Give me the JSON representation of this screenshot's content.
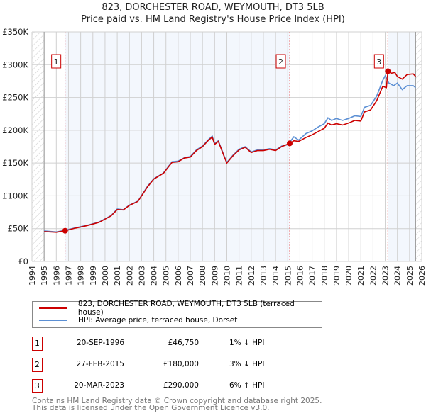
{
  "chart_data": {
    "type": "line",
    "title": "823, DORCHESTER ROAD, WEYMOUTH, DT3 5LB",
    "subtitle": "Price paid vs. HM Land Registry's House Price Index (HPI)",
    "ylim": [
      0,
      350000
    ],
    "xlim": [
      1994,
      2026
    ],
    "yticks": [
      {
        "v": 0,
        "l": "£0"
      },
      {
        "v": 50000,
        "l": "£50K"
      },
      {
        "v": 100000,
        "l": "£100K"
      },
      {
        "v": 150000,
        "l": "£150K"
      },
      {
        "v": 200000,
        "l": "£200K"
      },
      {
        "v": 250000,
        "l": "£250K"
      },
      {
        "v": 300000,
        "l": "£300K"
      },
      {
        "v": 350000,
        "l": "£350K"
      }
    ],
    "xticks": [
      "1994",
      "1995",
      "1996",
      "1997",
      "1998",
      "1999",
      "2000",
      "2001",
      "2002",
      "2003",
      "2004",
      "2005",
      "2006",
      "2007",
      "2008",
      "2009",
      "2010",
      "2011",
      "2012",
      "2013",
      "2014",
      "2015",
      "2016",
      "2017",
      "2018",
      "2019",
      "2020",
      "2021",
      "2022",
      "2023",
      "2024",
      "2025",
      "2026"
    ],
    "grid": true,
    "series": [
      {
        "name": "823, DORCHESTER ROAD, WEYMOUTH, DT3 5LB (terraced house)",
        "color": "#cc0000",
        "x": [
          1995,
          1996,
          1996.72,
          1997.5,
          1998.5,
          1999.5,
          2000.5,
          2001,
          2001.5,
          2002,
          2002.7,
          2003.5,
          2004,
          2004.8,
          2005.5,
          2006,
          2006.5,
          2007,
          2007.5,
          2008,
          2008.5,
          2008.8,
          2009,
          2009.3,
          2009.8,
          2010,
          2010.5,
          2011,
          2011.5,
          2012,
          2012.5,
          2013,
          2013.5,
          2014,
          2014.5,
          2015.16,
          2015.5,
          2015.9,
          2016.5,
          2017,
          2017.5,
          2018,
          2018.3,
          2018.6,
          2019,
          2019.5,
          2020,
          2020.5,
          2021,
          2021.3,
          2021.8,
          2022.3,
          2022.8,
          2023.1,
          2023.22,
          2023.5,
          2023.8,
          2024,
          2024.4,
          2024.8,
          2025.3,
          2025.5
        ],
        "y": [
          45500,
          44500,
          46750,
          50500,
          54500,
          59500,
          69500,
          79000,
          78500,
          85500,
          91500,
          114000,
          125500,
          134500,
          151000,
          152000,
          157500,
          159000,
          169000,
          175000,
          185000,
          189500,
          178500,
          183000,
          159000,
          150000,
          161000,
          170000,
          174000,
          166000,
          169000,
          169000,
          171000,
          169000,
          175000,
          180000,
          184000,
          183000,
          189000,
          193000,
          198000,
          203000,
          211000,
          208000,
          210000,
          208000,
          211000,
          215000,
          214000,
          228000,
          231000,
          245000,
          267000,
          265000,
          290000,
          287000,
          288000,
          282000,
          278000,
          285000,
          286000,
          282000
        ]
      },
      {
        "name": "HPI: Average price, terraced house, Dorset",
        "color": "#5b8fd4",
        "x": [
          1995,
          1996,
          1996.72,
          1997.5,
          1998.5,
          1999.5,
          2000.5,
          2001,
          2001.5,
          2002,
          2002.7,
          2003.5,
          2004,
          2004.8,
          2005.5,
          2006,
          2006.5,
          2007,
          2007.5,
          2008,
          2008.5,
          2008.8,
          2009,
          2009.3,
          2009.8,
          2010,
          2010.5,
          2011,
          2011.5,
          2012,
          2012.5,
          2013,
          2013.5,
          2014,
          2014.5,
          2015,
          2015.5,
          2015.9,
          2016.5,
          2017,
          2017.5,
          2018,
          2018.3,
          2018.6,
          2019,
          2019.5,
          2020,
          2020.5,
          2021,
          2021.3,
          2021.8,
          2022.3,
          2022.8,
          2023,
          2023.3,
          2023.7,
          2024,
          2024.4,
          2024.8,
          2025.3,
          2025.5
        ],
        "y": [
          46500,
          45000,
          47500,
          51000,
          55000,
          60000,
          70000,
          80000,
          79000,
          86000,
          92000,
          115000,
          126000,
          135000,
          152000,
          153000,
          158000,
          160000,
          170000,
          176000,
          186000,
          191000,
          180000,
          184000,
          160000,
          151000,
          162000,
          171000,
          175000,
          167000,
          170000,
          170000,
          172000,
          170000,
          176000,
          178000,
          190000,
          185000,
          195000,
          199000,
          205000,
          210000,
          219000,
          215000,
          218000,
          215000,
          218000,
          222000,
          221000,
          235000,
          238000,
          252000,
          276000,
          283000,
          272000,
          268000,
          272000,
          262000,
          268000,
          268000,
          265000
        ]
      }
    ],
    "sales": [
      {
        "label": "1",
        "x": 1996.72,
        "y": 46750
      },
      {
        "label": "2",
        "x": 2015.16,
        "y": 180000
      },
      {
        "label": "3",
        "x": 2023.22,
        "y": 290000
      }
    ],
    "legend_position": "bottom"
  },
  "legend": {
    "property": "823, DORCHESTER ROAD, WEYMOUTH, DT3 5LB (terraced house)",
    "hpi": "HPI: Average price, terraced house, Dorset"
  },
  "table": [
    {
      "n": "1",
      "date": "20-SEP-1996",
      "price": "£46,750",
      "hpi": "1% ↓ HPI"
    },
    {
      "n": "2",
      "date": "27-FEB-2015",
      "price": "£180,000",
      "hpi": "3% ↓ HPI"
    },
    {
      "n": "3",
      "date": "20-MAR-2023",
      "price": "£290,000",
      "hpi": "6% ↑ HPI"
    }
  ],
  "footer": [
    "Contains HM Land Registry data © Crown copyright and database right 2025.",
    "This data is licensed under the Open Government Licence v3.0."
  ]
}
